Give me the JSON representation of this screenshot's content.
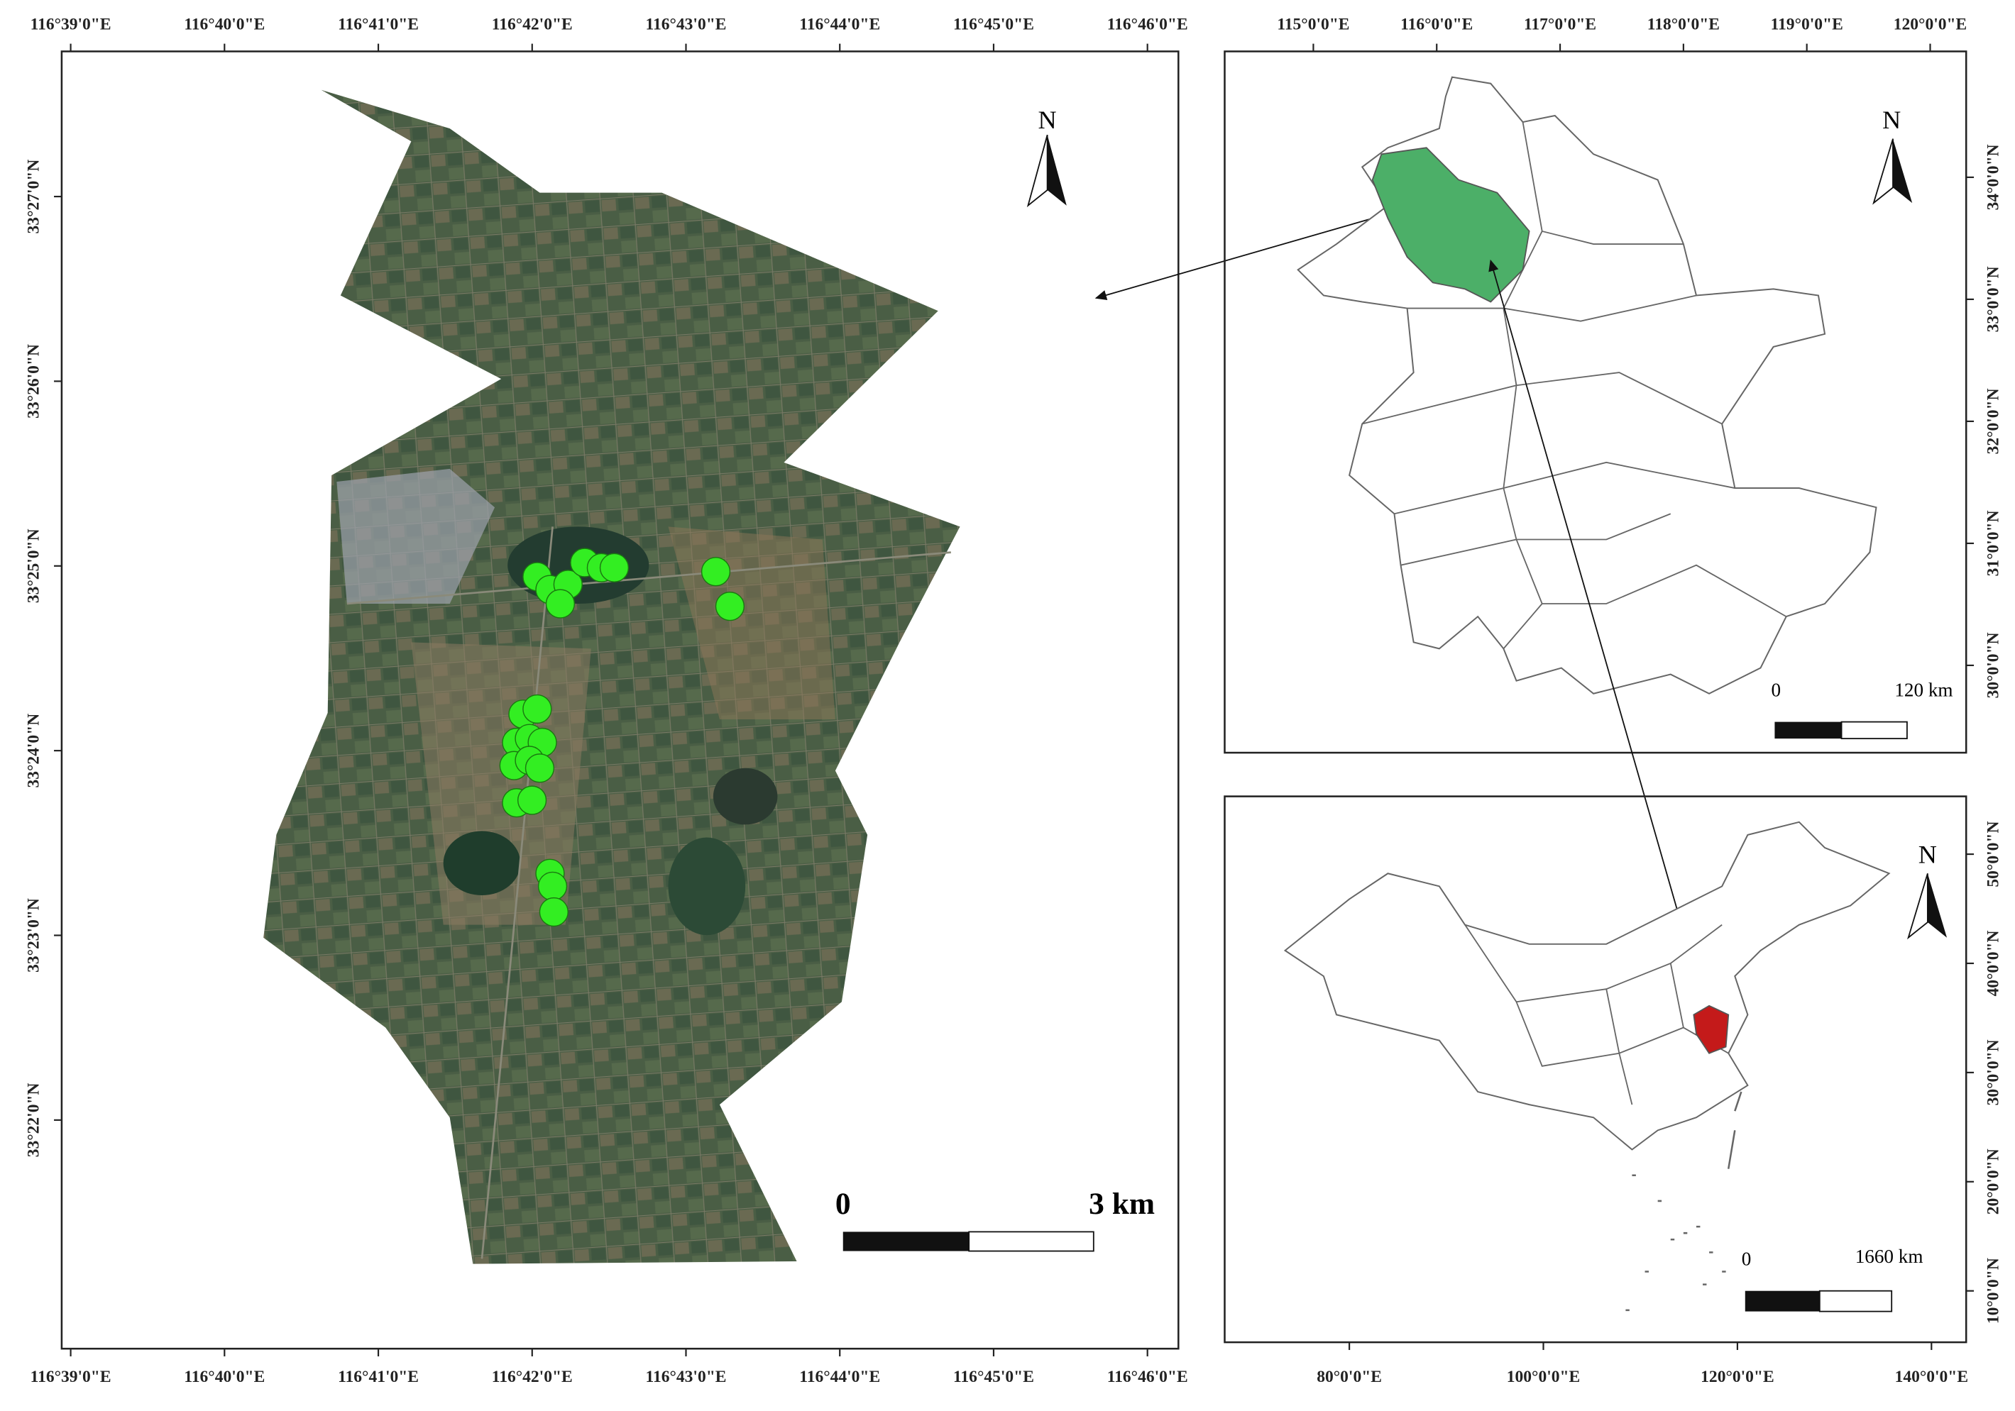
{
  "main_map": {
    "top_ticks": [
      "116°39'0\"E",
      "116°40'0\"E",
      "116°41'0\"E",
      "116°42'0\"E",
      "116°43'0\"E",
      "116°44'0\"E",
      "116°45'0\"E",
      "116°46'0\"E"
    ],
    "bottom_ticks": [
      "116°39'0\"E",
      "116°40'0\"E",
      "116°41'0\"E",
      "116°42'0\"E",
      "116°43'0\"E",
      "116°44'0\"E",
      "116°45'0\"E",
      "116°46'0\"E"
    ],
    "left_ticks": [
      "33°27'0\"N",
      "33°26'0\"N",
      "33°25'0\"N",
      "33°24'0\"N",
      "33°23'0\"N",
      "33°22'0\"N"
    ],
    "north": "N",
    "scale": {
      "start": "0",
      "end": "3 km"
    }
  },
  "province_map": {
    "top_ticks": [
      "115°0'0\"E",
      "116°0'0\"E",
      "117°0'0\"E",
      "118°0'0\"E",
      "119°0'0\"E",
      "120°0'0\"E"
    ],
    "right_ticks": [
      "34°0'0\"N",
      "33°0'0\"N",
      "32°0'0\"N",
      "31°0'0\"N",
      "30°0'0\"N"
    ],
    "north": "N",
    "scale": {
      "start": "0",
      "end": "120 km"
    }
  },
  "china_map": {
    "bottom_ticks": [
      "80°0'0\"E",
      "100°0'0\"E",
      "120°0'0\"E",
      "140°0'0\"E"
    ],
    "right_ticks": [
      "50°0'0\"N",
      "40°0'0\"N",
      "30°0'0\"N",
      "20°0'0\"N",
      "10°0'0\"N"
    ],
    "north": "N",
    "scale": {
      "start": "0",
      "end": "1660 km"
    }
  }
}
